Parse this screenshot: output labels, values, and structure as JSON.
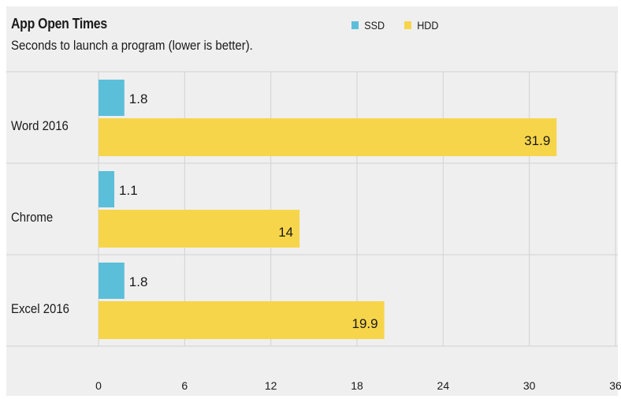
{
  "chart_data": {
    "type": "bar",
    "orientation": "horizontal",
    "title": "App Open Times",
    "subtitle": "Seconds to launch a program (lower is better).",
    "categories": [
      "Word 2016",
      "Chrome",
      "Excel 2016"
    ],
    "series": [
      {
        "name": "SSD",
        "color": "#5bbfd9",
        "values": [
          1.8,
          1.1,
          1.8
        ],
        "labels": [
          "1.8",
          "1.1",
          "1.8"
        ]
      },
      {
        "name": "HDD",
        "color": "#f7d54a",
        "values": [
          31.9,
          14,
          19.9
        ],
        "labels": [
          "31.9",
          "14",
          "19.9"
        ]
      }
    ],
    "xlim": [
      0,
      36
    ],
    "xticks": [
      "0",
      "6",
      "12",
      "18",
      "24",
      "30",
      "36"
    ],
    "grid": true,
    "legend_position": "top"
  }
}
